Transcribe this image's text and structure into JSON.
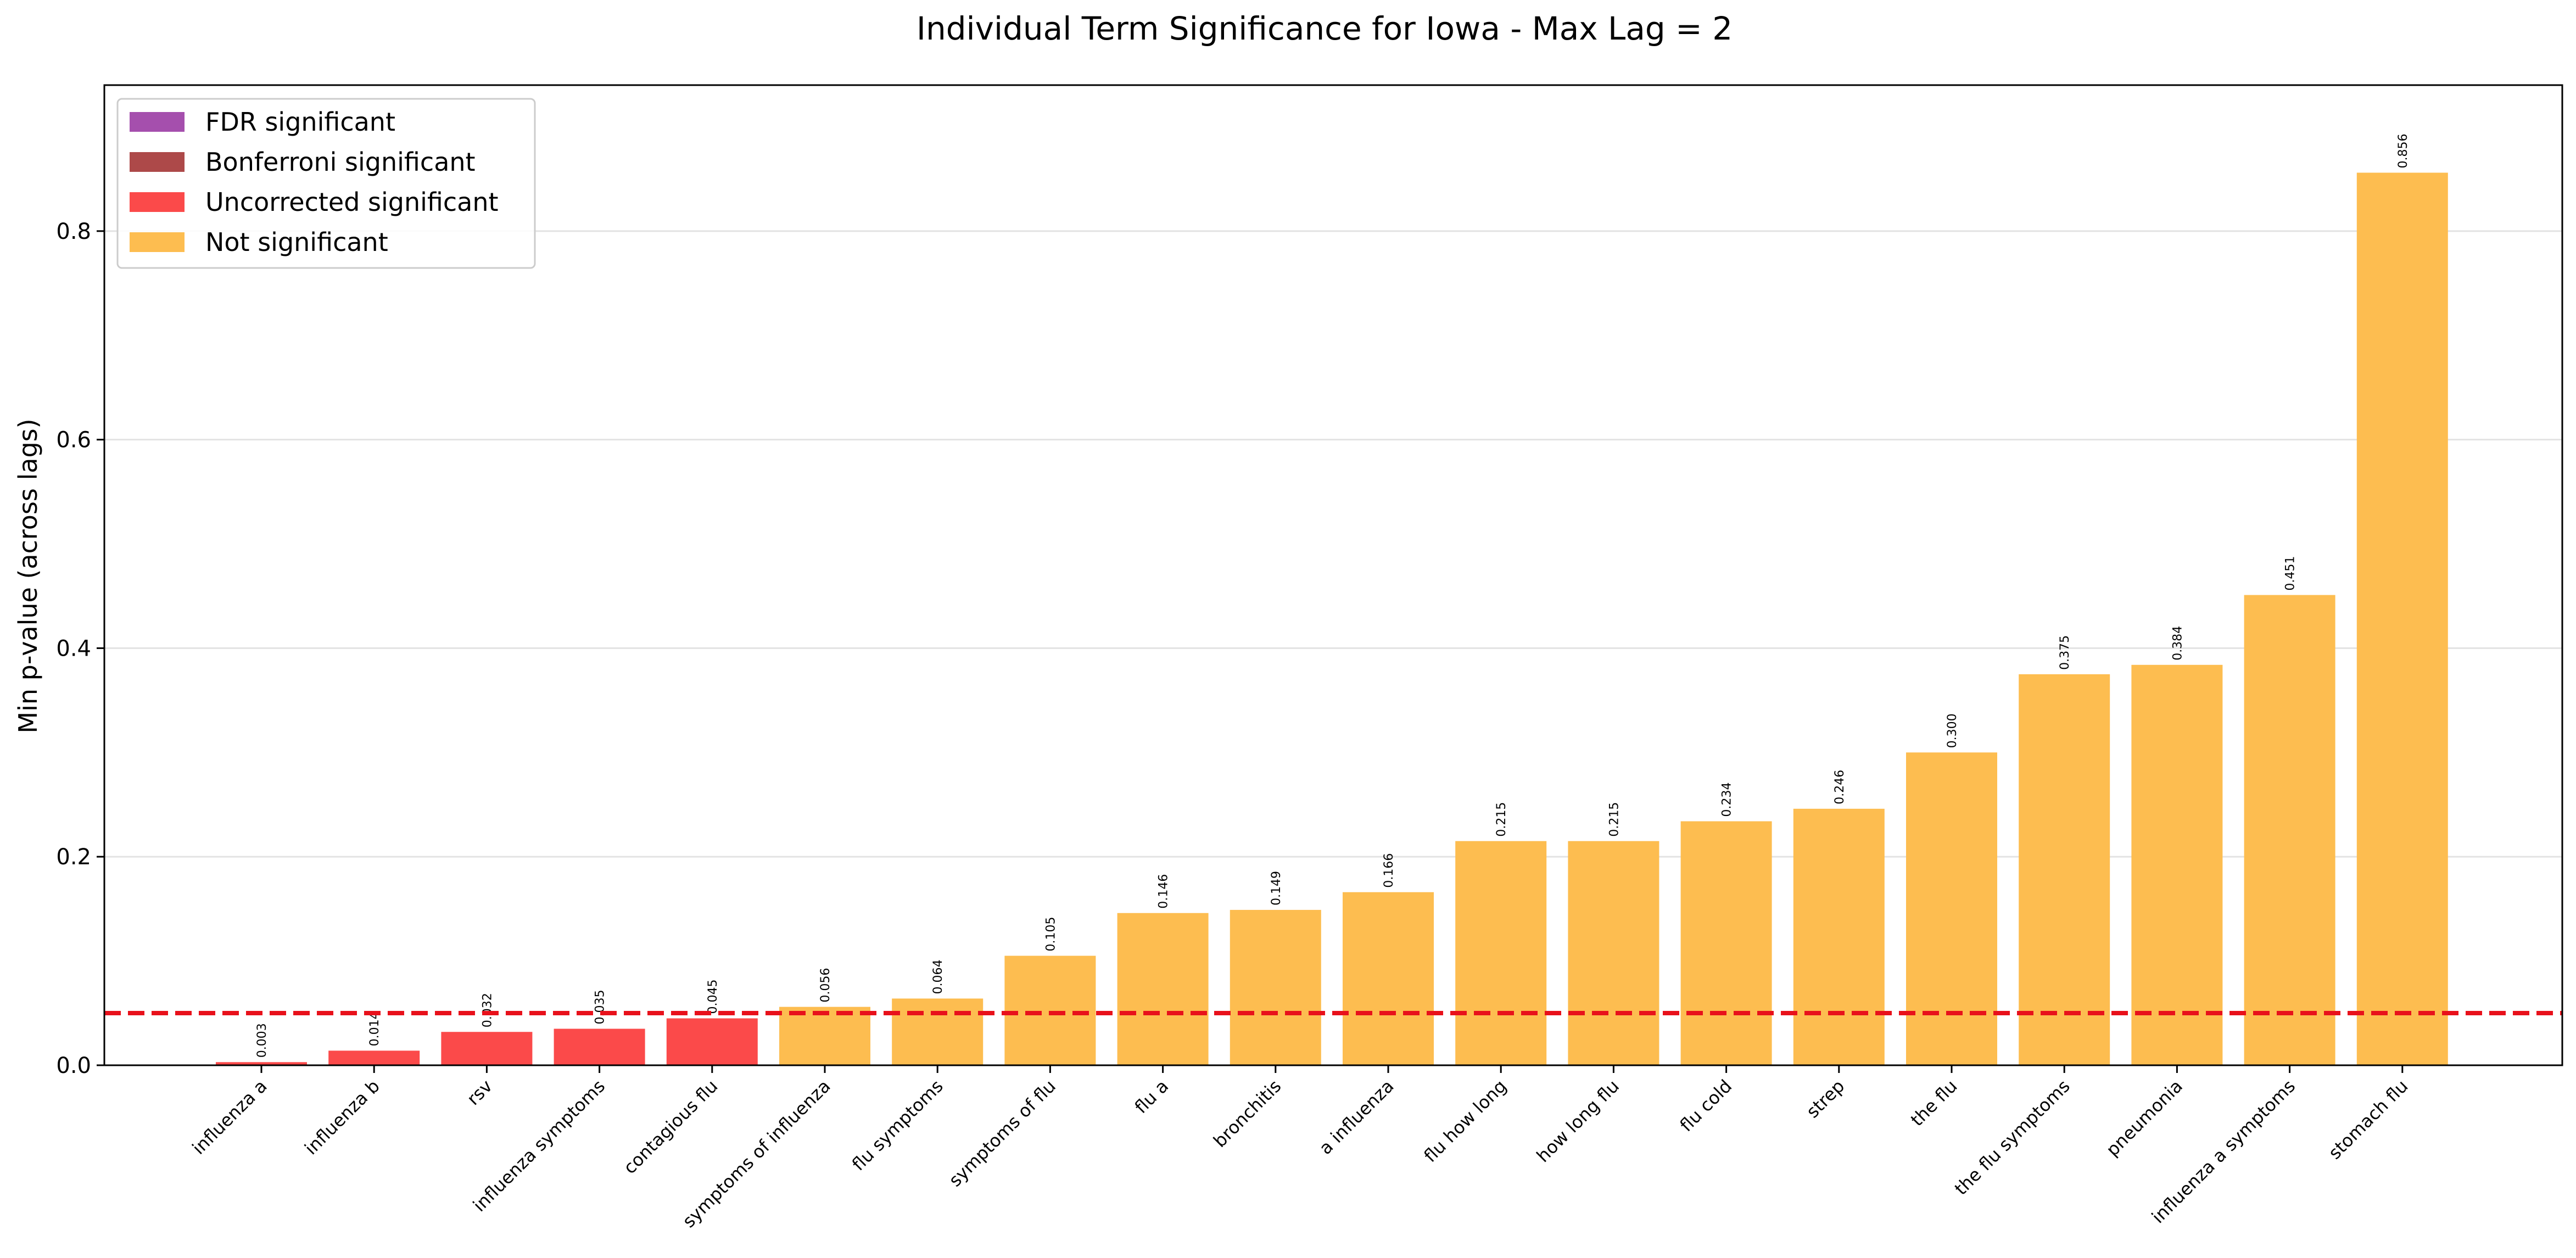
{
  "chart_data": {
    "type": "bar",
    "title": "Individual Term Significance for Iowa - Max Lag = 2",
    "xlabel": "",
    "ylabel": "Min p-value (across lags)",
    "ylim": [
      0,
      0.94
    ],
    "yticks": [
      "0.0",
      "0.2",
      "0.4",
      "0.6",
      "0.8"
    ],
    "ytick_values": [
      0,
      0.2,
      0.4,
      0.6,
      0.8
    ],
    "grid": "horizontal",
    "threshold_line": {
      "value": 0.05,
      "style": "dashed",
      "color": "#e8111b"
    },
    "legend": {
      "placement": "top-left",
      "entries": [
        {
          "label": "FDR significant",
          "color": "#a54fad"
        },
        {
          "label": "Bonferroni significant",
          "color": "#ad4949"
        },
        {
          "label": "Uncorrected significant",
          "color": "#fb4a4a"
        },
        {
          "label": "Not significant",
          "color": "#fdbd50"
        }
      ]
    },
    "categories": [
      "influenza a",
      "influenza b",
      "rsv",
      "influenza symptoms",
      "contagious flu",
      "symptoms of influenza",
      "flu symptoms",
      "symptoms of flu",
      "flu a",
      "bronchitis",
      "a influenza",
      "flu how long",
      "how long flu",
      "flu cold",
      "strep",
      "the flu",
      "the flu symptoms",
      "pneumonia",
      "influenza a symptoms",
      "stomach flu"
    ],
    "values": [
      0.003,
      0.014,
      0.032,
      0.035,
      0.045,
      0.056,
      0.064,
      0.105,
      0.146,
      0.149,
      0.166,
      0.215,
      0.215,
      0.234,
      0.246,
      0.3,
      0.375,
      0.384,
      0.451,
      0.856
    ],
    "value_labels": [
      "0.003",
      "0.014",
      "0.032",
      "0.035",
      "0.045",
      "0.056",
      "0.064",
      "0.105",
      "0.146",
      "0.149",
      "0.166",
      "0.215",
      "0.215",
      "0.234",
      "0.246",
      "0.300",
      "0.375",
      "0.384",
      "0.451",
      "0.856"
    ],
    "significance": [
      "uncorrected",
      "uncorrected",
      "uncorrected",
      "uncorrected",
      "uncorrected",
      "not",
      "not",
      "not",
      "not",
      "not",
      "not",
      "not",
      "not",
      "not",
      "not",
      "not",
      "not",
      "not",
      "not",
      "not"
    ],
    "colors": {
      "uncorrected": "#fb4a4a",
      "not": "#fdbd50"
    }
  }
}
